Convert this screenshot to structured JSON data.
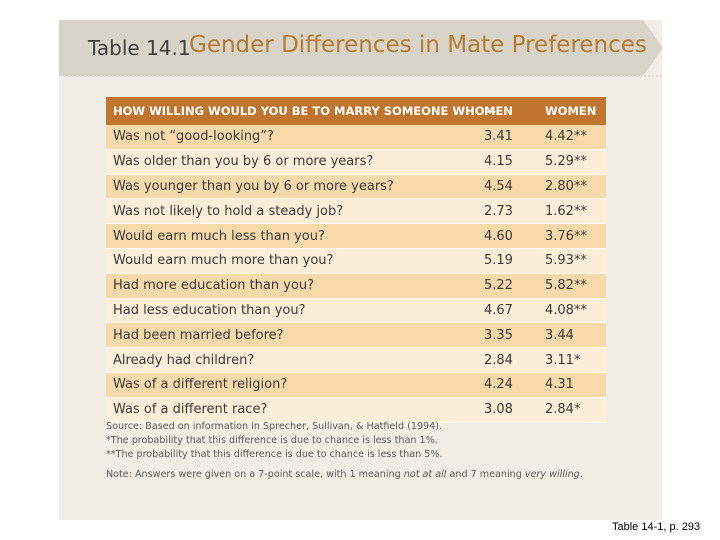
{
  "header": {
    "table_number": "Table 14.1",
    "title": "Gender Differences in Mate Preferences"
  },
  "table": {
    "columns": [
      "HOW WILLING WOULD YOU BE TO MARRY SOMEONE WHO—",
      "MEN",
      "WOMEN"
    ],
    "rows": [
      {
        "question": "Was not “good-looking”?",
        "men": "3.41",
        "women": "4.42**"
      },
      {
        "question": "Was older than you by 6 or more years?",
        "men": "4.15",
        "women": "5.29**"
      },
      {
        "question": "Was younger than you by 6 or more years?",
        "men": "4.54",
        "women": "2.80**"
      },
      {
        "question": "Was not likely to hold a steady job?",
        "men": "2.73",
        "women": "1.62**"
      },
      {
        "question": "Would earn much less than you?",
        "men": "4.60",
        "women": "3.76**"
      },
      {
        "question": "Would earn much more than you?",
        "men": "5.19",
        "women": "5.93**"
      },
      {
        "question": "Had more education than you?",
        "men": "5.22",
        "women": "5.82**"
      },
      {
        "question": "Had less education than you?",
        "men": "4.67",
        "women": "4.08**"
      },
      {
        "question": "Had been married before?",
        "men": "3.35",
        "women": "3.44"
      },
      {
        "question": "Already had children?",
        "men": "2.84",
        "women": "3.11*"
      },
      {
        "question": "Was of a different religion?",
        "men": "4.24",
        "women": "4.31"
      },
      {
        "question": "Was of a different race?",
        "men": "3.08",
        "women": "2.84*"
      }
    ]
  },
  "notes": {
    "source": "Source: Based on information in Sprecher, Sullivan, & Hatfield (1994).",
    "footnote_1": "*The probability that this difference is due to chance is less than 1%.",
    "footnote_2": "**The probability that this difference is due to chance is less than 5%.",
    "note_a": "Note: Answers were given on a 7-point scale, with 1 meaning ",
    "note_b": "not at all",
    "note_c": " and 7 meaning ",
    "note_d": "very willing",
    "note_e": "."
  },
  "caption": "Table 14-1, p. 293",
  "colors": {
    "header_bg": "#c0752e",
    "title_accent": "#b97a2e",
    "row_dark": "#f8d9aa",
    "row_light": "#fdeed7",
    "panel_bg": "#f2eee5",
    "banner_bg": "#d8d4ca"
  }
}
